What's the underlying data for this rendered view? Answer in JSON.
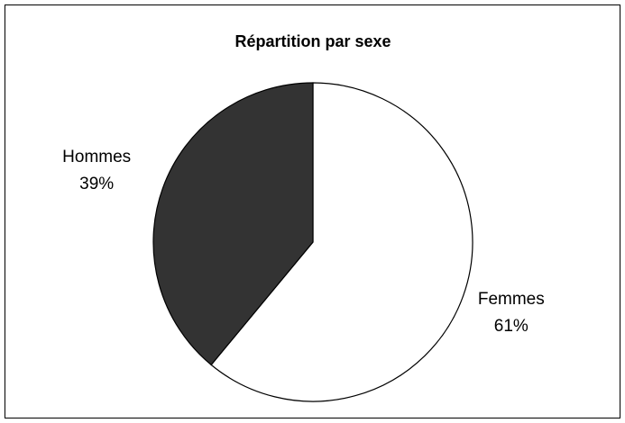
{
  "chart_data": {
    "type": "pie",
    "title": "Répartition par sexe",
    "categories": [
      "Femmes",
      "Hommes"
    ],
    "values": [
      61,
      39
    ],
    "value_labels": [
      "61%",
      "39%"
    ],
    "colors": [
      "#ffffff",
      "#333333"
    ]
  }
}
